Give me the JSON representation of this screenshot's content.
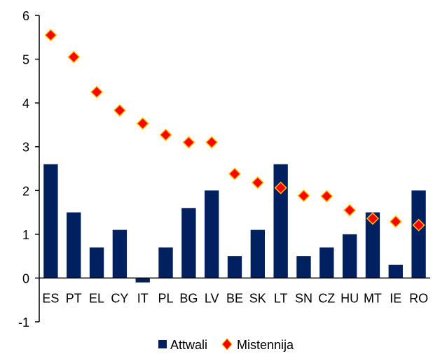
{
  "chart_data": {
    "type": "bar",
    "title": "",
    "xlabel": "",
    "ylabel": "",
    "ylim": [
      -1,
      6
    ],
    "yticks": [
      -1,
      0,
      1,
      2,
      3,
      4,
      5,
      6
    ],
    "grid": false,
    "legend_position": "bottom",
    "categories": [
      "ES",
      "PT",
      "EL",
      "CY",
      "IT",
      "PL",
      "BG",
      "LV",
      "BE",
      "SK",
      "LT",
      "SN",
      "CZ",
      "HU",
      "MT",
      "IE",
      "RO"
    ],
    "series": [
      {
        "name": "Attwali",
        "kind": "bar",
        "color": "#002060",
        "values": [
          2.6,
          1.5,
          0.7,
          1.1,
          -0.1,
          0.7,
          1.6,
          2.0,
          0.5,
          1.1,
          2.6,
          0.5,
          0.7,
          1.0,
          1.5,
          0.3,
          2.0
        ]
      },
      {
        "name": "Mistennija",
        "kind": "marker",
        "color": "#FF0000",
        "border_color": "#FFC000",
        "marker": "diamond",
        "values": [
          5.55,
          5.05,
          4.25,
          3.83,
          3.53,
          3.27,
          3.1,
          3.1,
          2.38,
          2.18,
          2.06,
          1.88,
          1.87,
          1.55,
          1.36,
          1.29,
          1.21
        ]
      }
    ]
  }
}
